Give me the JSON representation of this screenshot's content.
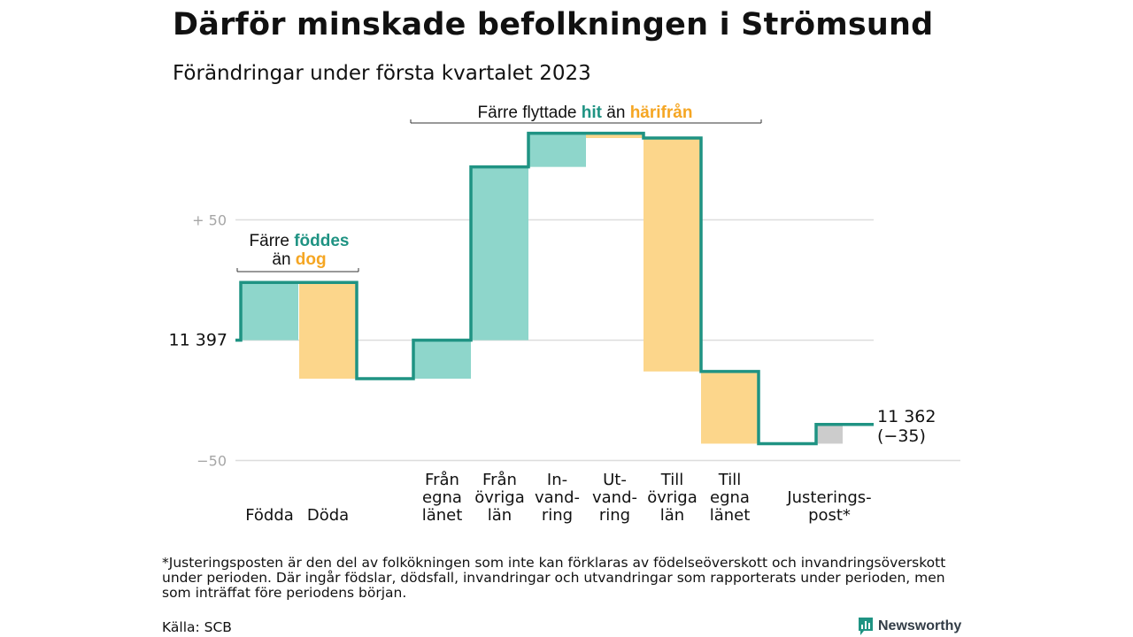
{
  "header": {
    "title": "Därför minskade befolkningen i Strömsund",
    "subtitle": "Förändringar under första kvartalet 2023"
  },
  "chart_data": {
    "type": "waterfall",
    "start": {
      "label": "11 397",
      "value": 11397
    },
    "end": {
      "label_value": "11 362",
      "label_change": "(−35)",
      "value": 11362
    },
    "y_ticks": [
      {
        "label": "+ 50",
        "offset": 50
      },
      {
        "label": "−50",
        "offset": -50
      }
    ],
    "ylim_offset": [
      -50,
      88
    ],
    "steps": [
      {
        "label": [
          "Födda"
        ],
        "change": 24,
        "kind": "in"
      },
      {
        "label": [
          "Döda"
        ],
        "change": -40,
        "kind": "out"
      },
      {
        "label": [
          "Från",
          "egna",
          "länet"
        ],
        "change": 16,
        "kind": "in"
      },
      {
        "label": [
          "Från",
          "övriga",
          "län"
        ],
        "change": 72,
        "kind": "in"
      },
      {
        "label": [
          "In-",
          "vand-",
          "ring"
        ],
        "change": 14,
        "kind": "in"
      },
      {
        "label": [
          "Ut-",
          "vand-",
          "ring"
        ],
        "change": -2,
        "kind": "out"
      },
      {
        "label": [
          "Till",
          "övriga",
          "län"
        ],
        "change": -97,
        "kind": "out"
      },
      {
        "label": [
          "Till",
          "egna",
          "länet"
        ],
        "change": -30,
        "kind": "out"
      },
      {
        "label": [
          "Justerings-",
          "post*"
        ],
        "change": 8,
        "kind": "adjust"
      }
    ],
    "annotations": {
      "births": {
        "line1_pre": "Färre ",
        "line1_em": "föddes",
        "line2_pre": "än ",
        "line2_em": "dog"
      },
      "moves": {
        "pre": "Färre flyttade ",
        "em1": "hit",
        "mid": " än ",
        "em2": "härifrån"
      }
    },
    "colors": {
      "in_fill": "#8ed6cb",
      "out_fill": "#fcd68b",
      "adjust_fill": "#cccccc",
      "line": "#1f9383",
      "accent_in": "#1f9383",
      "accent_out": "#f5a623",
      "grid": "#dddddd",
      "tick_text": "#a6a6a6"
    }
  },
  "footer": {
    "note": "*Justeringsposten är den del av folkökningen som inte kan förklaras av födelseöverskott och invandringsöverskott under perioden. Där ingår födslar, dödsfall, invandringar och utvandringar som rapporterats under perioden, men som inträffat före periodens början.",
    "source": "Källa: SCB",
    "brand": "Newsworthy"
  }
}
